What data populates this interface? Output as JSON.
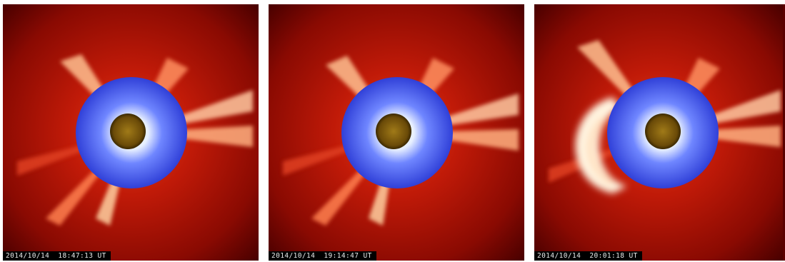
{
  "panels": [
    {
      "timestamp": "2014/10/14  18:47:13 UT"
    },
    {
      "timestamp": "2014/10/14  19:14:47 UT"
    },
    {
      "timestamp": "2014/10/14  20:01:18 UT"
    }
  ],
  "colors": {
    "corona_dark": "#5a0000",
    "corona_mid": "#c8200a",
    "streamer": "#ffd0a0",
    "occulter_blue": "#3a4fe0",
    "sun_disk": "#8a6a10"
  },
  "icons": [
    "lasco-c2-coronagraph-image",
    "eit-sun-disk-image",
    "coronal-mass-ejection"
  ]
}
